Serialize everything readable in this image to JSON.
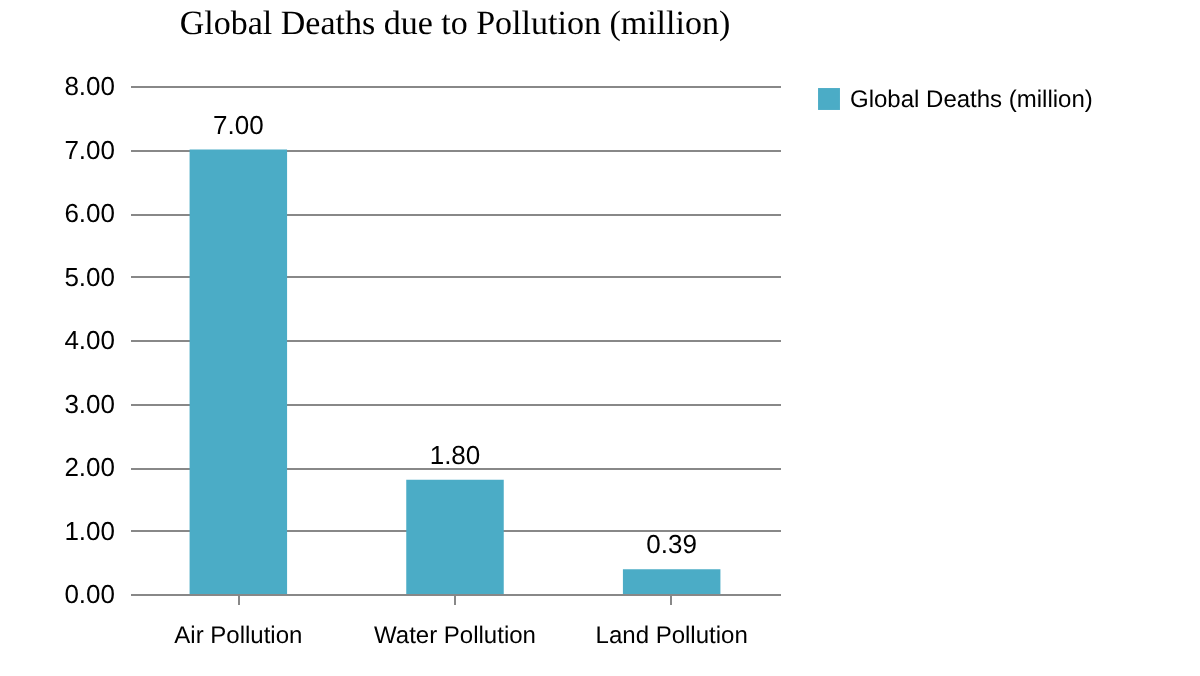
{
  "chart_data": {
    "type": "bar",
    "title": "Global Deaths due to Pollution (million)",
    "categories": [
      "Air Pollution",
      "Water Pollution",
      "Land Pollution"
    ],
    "series": [
      {
        "name": "Global Deaths (million)",
        "color": "#4bacc6",
        "values": [
          7.0,
          1.8,
          0.39
        ],
        "value_labels": [
          "7.00",
          "1.80",
          "0.39"
        ]
      }
    ],
    "ylim": [
      0,
      8
    ],
    "yticks": [
      {
        "value": 0,
        "label": "0.00"
      },
      {
        "value": 1,
        "label": "1.00"
      },
      {
        "value": 2,
        "label": "2.00"
      },
      {
        "value": 3,
        "label": "3.00"
      },
      {
        "value": 4,
        "label": "4.00"
      },
      {
        "value": 5,
        "label": "5.00"
      },
      {
        "value": 6,
        "label": "6.00"
      },
      {
        "value": 7,
        "label": "7.00"
      },
      {
        "value": 8,
        "label": "8.00"
      }
    ],
    "grid": "y",
    "legend": "right"
  }
}
